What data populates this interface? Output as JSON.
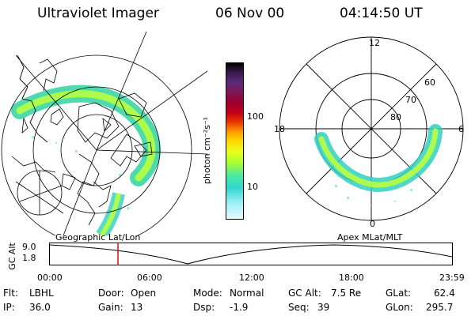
{
  "header": {
    "title": "Ultraviolet Imager",
    "date": "06 Nov 00",
    "time": "04:14:50 UT"
  },
  "colorbar": {
    "label": "photon cm⁻²s⁻¹",
    "ticks": [
      "100",
      "10"
    ],
    "colors": [
      "#000000",
      "#3a1a4a",
      "#5b2a7a",
      "#7a1a5a",
      "#9a0030",
      "#c80018",
      "#e83a00",
      "#ff9a00",
      "#ffd800",
      "#e8ff20",
      "#a8ff30",
      "#50e8a0",
      "#30d8d0",
      "#a0f0f8",
      "#e8fbff"
    ]
  },
  "left_panel": {
    "label": "Geographic Lat/Lon"
  },
  "right_panel": {
    "label": "Apex MLat/MLT",
    "mlt_labels": [
      "12",
      "6",
      "0",
      "18"
    ],
    "lat_labels": [
      "60",
      "70",
      "80"
    ]
  },
  "altitude_plot": {
    "ylabel": "GC Alt",
    "yticks": [
      "9.0",
      "1.8"
    ],
    "xticks": [
      "00:00",
      "06:00",
      "12:00",
      "18:00",
      "23:59"
    ],
    "marker_time": "04:14:50",
    "marker_color": "#d01010"
  },
  "info": {
    "flt_label": "Flt:",
    "flt_value": "LBHL",
    "ip_label": "IP:",
    "ip_value": "36.0",
    "door_label": "Door:",
    "door_value": "Open",
    "gain_label": "Gain:",
    "gain_value": "13",
    "mode_label": "Mode:",
    "mode_value": "Normal",
    "dsp_label": "Dsp:",
    "dsp_value": "-1.9",
    "gcalt_label": "GC Alt:",
    "gcalt_value": "7.5 Re",
    "seq_label": "Seq:",
    "seq_value": "39",
    "glat_label": "GLat:",
    "glat_value": "62.4",
    "glon_label": "GLon:",
    "glon_value": "295.7"
  }
}
